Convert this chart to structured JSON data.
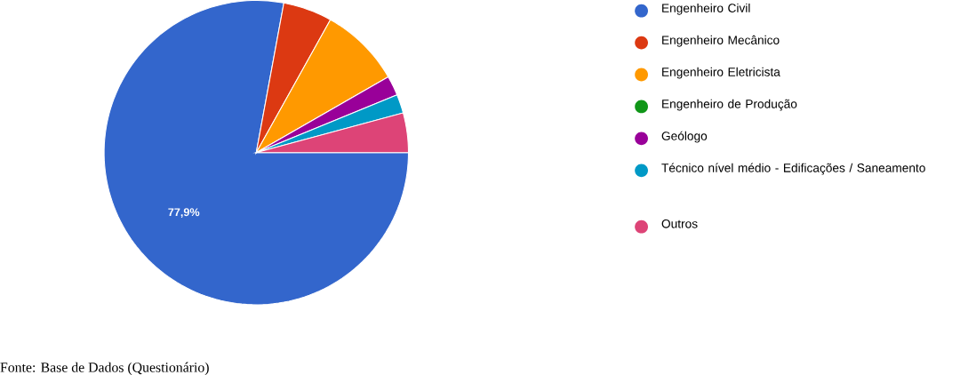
{
  "chart_data": {
    "type": "pie",
    "categories": [
      "Engenheiro Civil",
      "Engenheiro Mecânico",
      "Engenheiro Eletricista",
      "Engenheiro de Produção",
      "Geólogo",
      "Técnico nível médio - Edificações / Saneamento",
      "Outros"
    ],
    "values": [
      77.9,
      5.2,
      8.6,
      0,
      2.1,
      2.0,
      4.2
    ],
    "colors": [
      "#3366cc",
      "#dc3912",
      "#ff9900",
      "#109618",
      "#990099",
      "#0099c6",
      "#dd4477"
    ],
    "value_labels": [
      "77,9%",
      null,
      null,
      null,
      null,
      null,
      null
    ],
    "legend": "right",
    "annotations": [
      "Fonte: Base de Dados (Questionário)"
    ]
  }
}
